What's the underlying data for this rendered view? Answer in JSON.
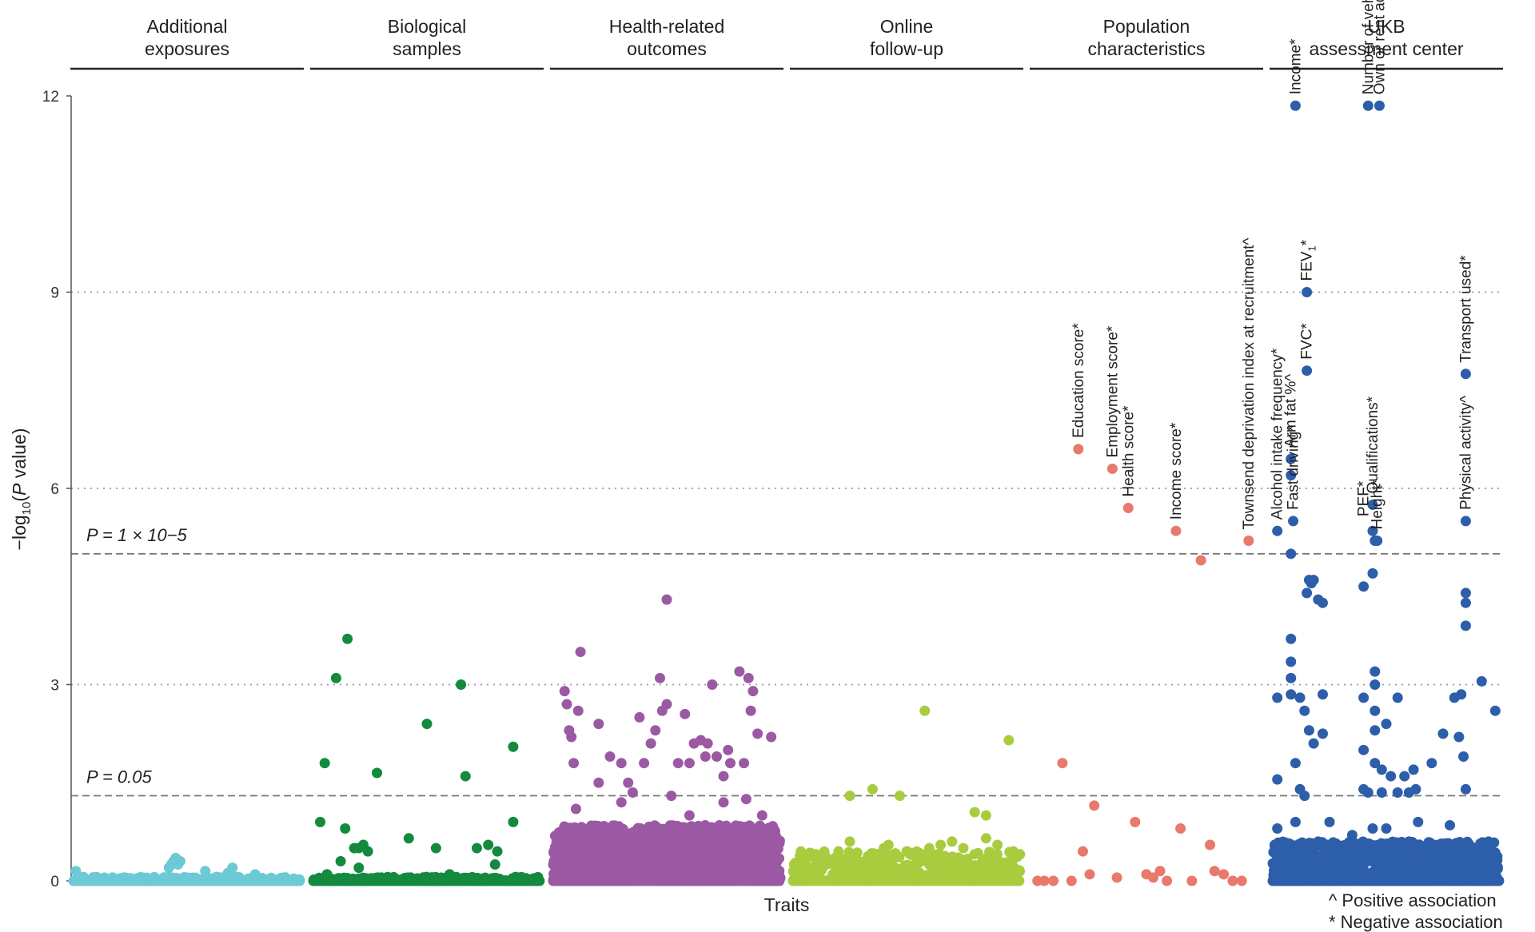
{
  "chart_data": {
    "type": "scatter",
    "title": "",
    "xlabel": "Traits",
    "ylabel": "−log10(P value)",
    "ylim": [
      0,
      12
    ],
    "yticks": [
      "0",
      "3",
      "6",
      "9",
      "12"
    ],
    "dotted_gridlines": [
      3,
      6,
      9
    ],
    "thresholds": [
      {
        "value": 5,
        "label": "P = 1 × 10−5"
      },
      {
        "value": 1.301,
        "label": "P = 0.05"
      }
    ],
    "categories": [
      {
        "name": "Additional exposures",
        "lines": [
          "Additional",
          "exposures"
        ],
        "color": "#6cc9d6"
      },
      {
        "name": "Biological samples",
        "lines": [
          "Biological",
          "samples"
        ],
        "color": "#138a3e"
      },
      {
        "name": "Health-related outcomes",
        "lines": [
          "Health-related",
          "outcomes"
        ],
        "color": "#9c59a3"
      },
      {
        "name": "Online follow-up",
        "lines": [
          "Online",
          "follow-up"
        ],
        "color": "#a9cc3f"
      },
      {
        "name": "Population characteristics",
        "lines": [
          "Population",
          "characteristics"
        ],
        "color": "#e8796c"
      },
      {
        "name": "UKB assessment center",
        "lines": [
          "UKB",
          "assessment center"
        ],
        "color": "#2d5ea9"
      }
    ],
    "series": [
      {
        "name": "Additional exposures",
        "points": [
          [
            0.01,
            0.15
          ],
          [
            0.42,
            0.2
          ],
          [
            0.43,
            0.25
          ],
          [
            0.44,
            0.3
          ],
          [
            0.45,
            0.35
          ],
          [
            0.46,
            0.25
          ],
          [
            0.47,
            0.3
          ],
          [
            0.58,
            0.15
          ],
          [
            0.68,
            0.12
          ],
          [
            0.7,
            0.2
          ],
          [
            0.8,
            0.1
          ],
          [
            0.3,
            0.05
          ],
          [
            0.5,
            0.05
          ]
        ]
      },
      {
        "name": "Biological samples",
        "points": [
          [
            0.05,
            1.8
          ],
          [
            0.03,
            0.9
          ],
          [
            0.1,
            3.1
          ],
          [
            0.15,
            3.7
          ],
          [
            0.12,
            0.3
          ],
          [
            0.14,
            0.8
          ],
          [
            0.18,
            0.5
          ],
          [
            0.2,
            0.5
          ],
          [
            0.22,
            0.55
          ],
          [
            0.24,
            0.45
          ],
          [
            0.2,
            0.2
          ],
          [
            0.28,
            1.65
          ],
          [
            0.42,
            0.65
          ],
          [
            0.5,
            2.4
          ],
          [
            0.54,
            0.5
          ],
          [
            0.65,
            3.0
          ],
          [
            0.67,
            1.6
          ],
          [
            0.72,
            0.5
          ],
          [
            0.77,
            0.55
          ],
          [
            0.8,
            0.25
          ],
          [
            0.81,
            0.45
          ],
          [
            0.88,
            2.05
          ],
          [
            0.88,
            0.9
          ],
          [
            0.06,
            0.1
          ],
          [
            0.3,
            0.05
          ],
          [
            0.6,
            0.1
          ],
          [
            0.7,
            0.05
          ]
        ]
      },
      {
        "name": "Health-related outcomes",
        "points": [
          [
            0.12,
            3.5
          ],
          [
            0.05,
            2.9
          ],
          [
            0.06,
            2.7
          ],
          [
            0.07,
            2.3
          ],
          [
            0.08,
            2.2
          ],
          [
            0.09,
            1.8
          ],
          [
            0.11,
            2.6
          ],
          [
            0.2,
            2.4
          ],
          [
            0.25,
            1.9
          ],
          [
            0.3,
            1.8
          ],
          [
            0.33,
            1.5
          ],
          [
            0.38,
            2.5
          ],
          [
            0.4,
            1.8
          ],
          [
            0.43,
            2.1
          ],
          [
            0.45,
            2.3
          ],
          [
            0.47,
            3.1
          ],
          [
            0.48,
            2.6
          ],
          [
            0.5,
            2.7
          ],
          [
            0.55,
            1.8
          ],
          [
            0.58,
            2.55
          ],
          [
            0.6,
            1.8
          ],
          [
            0.62,
            2.1
          ],
          [
            0.65,
            2.15
          ],
          [
            0.67,
            1.9
          ],
          [
            0.68,
            2.1
          ],
          [
            0.7,
            3.0
          ],
          [
            0.72,
            1.9
          ],
          [
            0.75,
            1.6
          ],
          [
            0.77,
            2.0
          ],
          [
            0.78,
            1.8
          ],
          [
            0.82,
            3.2
          ],
          [
            0.84,
            1.8
          ],
          [
            0.86,
            3.1
          ],
          [
            0.87,
            2.6
          ],
          [
            0.88,
            2.9
          ],
          [
            0.9,
            2.25
          ],
          [
            0.96,
            2.2
          ],
          [
            0.2,
            1.5
          ],
          [
            0.35,
            1.35
          ],
          [
            0.52,
            1.3
          ],
          [
            0.85,
            1.25
          ],
          [
            0.5,
            4.3
          ],
          [
            0.1,
            1.1
          ],
          [
            0.3,
            1.2
          ],
          [
            0.6,
            1.0
          ],
          [
            0.75,
            1.2
          ],
          [
            0.92,
            1.0
          ]
        ]
      },
      {
        "name": "Online follow-up",
        "points": [
          [
            0.25,
            1.3
          ],
          [
            0.35,
            1.4
          ],
          [
            0.47,
            1.3
          ],
          [
            0.58,
            2.6
          ],
          [
            0.8,
            1.05
          ],
          [
            0.85,
            1.0
          ],
          [
            0.95,
            2.15
          ],
          [
            0.1,
            0.4
          ],
          [
            0.2,
            0.45
          ],
          [
            0.25,
            0.6
          ],
          [
            0.4,
            0.5
          ],
          [
            0.42,
            0.55
          ],
          [
            0.5,
            0.45
          ],
          [
            0.6,
            0.5
          ],
          [
            0.65,
            0.55
          ],
          [
            0.7,
            0.6
          ],
          [
            0.75,
            0.5
          ],
          [
            0.85,
            0.65
          ],
          [
            0.9,
            0.55
          ],
          [
            0.97,
            0.45
          ],
          [
            0.15,
            0.3
          ],
          [
            0.55,
            0.35
          ],
          [
            0.3,
            0.2
          ]
        ]
      },
      {
        "name": "Population characteristics",
        "points": [
          [
            0.02,
            0.0
          ],
          [
            0.05,
            0.0
          ],
          [
            0.09,
            0.0
          ],
          [
            0.17,
            0.0
          ],
          [
            0.13,
            1.8
          ],
          [
            0.22,
            0.45
          ],
          [
            0.25,
            0.1
          ],
          [
            0.27,
            1.15
          ],
          [
            0.37,
            0.05
          ],
          [
            0.45,
            0.9
          ],
          [
            0.5,
            0.1
          ],
          [
            0.53,
            0.05
          ],
          [
            0.56,
            0.15
          ],
          [
            0.59,
            0.0
          ],
          [
            0.65,
            0.8
          ],
          [
            0.7,
            0.0
          ],
          [
            0.78,
            0.55
          ],
          [
            0.8,
            0.15
          ],
          [
            0.84,
            0.1
          ],
          [
            0.88,
            0.0
          ],
          [
            0.92,
            0.0
          ],
          [
            0.2,
            6.6
          ],
          [
            0.35,
            6.3
          ],
          [
            0.42,
            5.7
          ],
          [
            0.63,
            5.35
          ],
          [
            0.74,
            4.9
          ],
          [
            0.95,
            5.2
          ]
        ]
      },
      {
        "name": "UKB assessment center",
        "points": [
          [
            0.1,
            11.85
          ],
          [
            0.42,
            11.85
          ],
          [
            0.47,
            11.85
          ],
          [
            0.15,
            9.0
          ],
          [
            0.15,
            7.8
          ],
          [
            0.85,
            7.75
          ],
          [
            0.08,
            6.2
          ],
          [
            0.08,
            6.45
          ],
          [
            0.02,
            5.35
          ],
          [
            0.08,
            5.0
          ],
          [
            0.09,
            5.5
          ],
          [
            0.44,
            5.75
          ],
          [
            0.44,
            5.35
          ],
          [
            0.45,
            5.2
          ],
          [
            0.46,
            5.2
          ],
          [
            0.85,
            5.5
          ],
          [
            0.44,
            4.7
          ],
          [
            0.4,
            4.5
          ],
          [
            0.16,
            4.6
          ],
          [
            0.17,
            4.55
          ],
          [
            0.18,
            4.6
          ],
          [
            0.15,
            4.4
          ],
          [
            0.2,
            4.3
          ],
          [
            0.22,
            4.25
          ],
          [
            0.85,
            4.4
          ],
          [
            0.85,
            4.25
          ],
          [
            0.85,
            3.9
          ],
          [
            0.08,
            3.7
          ],
          [
            0.08,
            3.35
          ],
          [
            0.08,
            3.1
          ],
          [
            0.08,
            2.85
          ],
          [
            0.12,
            2.8
          ],
          [
            0.14,
            2.6
          ],
          [
            0.16,
            2.3
          ],
          [
            0.18,
            2.1
          ],
          [
            0.22,
            2.25
          ],
          [
            0.22,
            2.85
          ],
          [
            0.02,
            2.8
          ],
          [
            0.45,
            3.2
          ],
          [
            0.45,
            3.0
          ],
          [
            0.45,
            2.6
          ],
          [
            0.45,
            2.3
          ],
          [
            0.5,
            2.4
          ],
          [
            0.55,
            2.8
          ],
          [
            0.4,
            2.8
          ],
          [
            0.4,
            2.0
          ],
          [
            0.45,
            1.8
          ],
          [
            0.48,
            1.7
          ],
          [
            0.52,
            1.6
          ],
          [
            0.58,
            1.6
          ],
          [
            0.62,
            1.7
          ],
          [
            0.7,
            1.8
          ],
          [
            0.75,
            2.25
          ],
          [
            0.8,
            2.8
          ],
          [
            0.83,
            2.85
          ],
          [
            0.82,
            2.2
          ],
          [
            0.84,
            1.9
          ],
          [
            0.85,
            1.4
          ],
          [
            0.92,
            3.05
          ],
          [
            0.98,
            2.6
          ],
          [
            0.02,
            1.55
          ],
          [
            0.1,
            1.8
          ],
          [
            0.12,
            1.4
          ],
          [
            0.14,
            1.3
          ],
          [
            0.4,
            1.4
          ],
          [
            0.42,
            1.35
          ],
          [
            0.48,
            1.35
          ],
          [
            0.55,
            1.35
          ],
          [
            0.6,
            1.35
          ],
          [
            0.63,
            1.4
          ],
          [
            0.3,
            0.5
          ],
          [
            0.6,
            0.6
          ],
          [
            0.7,
            0.4
          ],
          [
            0.9,
            0.3
          ],
          [
            0.95,
            0.6
          ],
          [
            0.2,
            0.6
          ],
          [
            0.35,
            0.7
          ],
          [
            0.5,
            0.8
          ],
          [
            0.1,
            0.9
          ],
          [
            0.02,
            0.8
          ],
          [
            0.25,
            0.9
          ],
          [
            0.44,
            0.8
          ],
          [
            0.64,
            0.9
          ],
          [
            0.78,
            0.85
          ]
        ]
      }
    ],
    "dense_bands": [
      {
        "name": "Additional exposures",
        "count": 160,
        "max": 0.06
      },
      {
        "name": "Biological samples",
        "count": 200,
        "max": 0.06
      },
      {
        "name": "Health-related outcomes",
        "count": 1700,
        "max": 0.85
      },
      {
        "name": "Online follow-up",
        "count": 420,
        "max": 0.45
      },
      {
        "name": "Population characteristics",
        "count": 0,
        "max": 0.0
      },
      {
        "name": "UKB assessment center",
        "count": 900,
        "max": 0.6
      }
    ],
    "annotations": [
      {
        "category": "Population characteristics",
        "x": 0.2,
        "y": 6.6,
        "text": "Education score*"
      },
      {
        "category": "Population characteristics",
        "x": 0.35,
        "y": 6.3,
        "text": "Employment score*"
      },
      {
        "category": "Population characteristics",
        "x": 0.42,
        "y": 5.7,
        "text": "Health score*"
      },
      {
        "category": "Population characteristics",
        "x": 0.63,
        "y": 5.35,
        "text": "Income score*"
      },
      {
        "category": "Population characteristics",
        "x": 0.95,
        "y": 5.2,
        "text": "Townsend deprivation index at recruitment^"
      },
      {
        "category": "UKB assessment center",
        "x": 0.02,
        "y": 5.35,
        "text": "Alcohol intake frequency*"
      },
      {
        "category": "UKB assessment center",
        "x": 0.08,
        "y": 6.45,
        "text": "Arm fat %^"
      },
      {
        "category": "UKB assessment center",
        "x": 0.1,
        "y": 11.85,
        "text": "Income*"
      },
      {
        "category": "UKB assessment center",
        "x": 0.15,
        "y": 9.0,
        "text": "FEV1*"
      },
      {
        "category": "UKB assessment center",
        "x": 0.15,
        "y": 7.8,
        "text": "FVC*"
      },
      {
        "category": "UKB assessment center",
        "x": 0.09,
        "y": 5.5,
        "text": "Fast driving*"
      },
      {
        "category": "UKB assessment center",
        "x": 0.42,
        "y": 11.85,
        "text": "Number of vehicles*"
      },
      {
        "category": "UKB assessment center",
        "x": 0.47,
        "y": 11.85,
        "text": "Own or rent accommodation*"
      },
      {
        "category": "UKB assessment center",
        "x": 0.4,
        "y": 5.4,
        "text": "PEF*"
      },
      {
        "category": "UKB assessment center",
        "x": 0.44,
        "y": 5.75,
        "text": "Qualifications*"
      },
      {
        "category": "UKB assessment center",
        "x": 0.46,
        "y": 5.2,
        "text": "Height*"
      },
      {
        "category": "UKB assessment center",
        "x": 0.85,
        "y": 5.5,
        "text": "Physical activity^"
      },
      {
        "category": "UKB assessment center",
        "x": 0.85,
        "y": 7.75,
        "text": "Transport used*"
      }
    ],
    "legend": [
      "^ Positive association",
      "* Negative association"
    ]
  }
}
